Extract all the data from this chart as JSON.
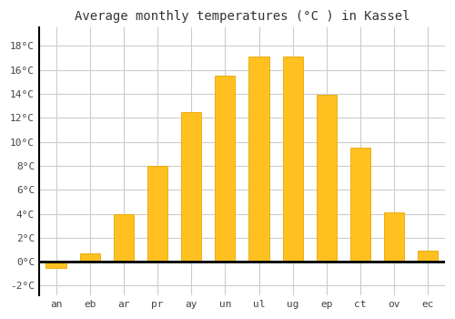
{
  "months": [
    "an",
    "eb",
    "ar",
    "pr",
    "ay",
    "un",
    "ul",
    "ug",
    "ep",
    "ct",
    "ov",
    "ec"
  ],
  "values": [
    -0.5,
    0.7,
    4.0,
    8.0,
    12.5,
    15.5,
    17.1,
    17.1,
    13.9,
    9.5,
    4.1,
    0.9
  ],
  "bar_color": "#FFC020",
  "bar_edge_color": "#E8A800",
  "title": "Average monthly temperatures (°C ) in Kassel",
  "ylim": [
    -2.8,
    19.5
  ],
  "yticks": [
    -2,
    0,
    2,
    4,
    6,
    8,
    10,
    12,
    14,
    16,
    18
  ],
  "background_color": "#ffffff",
  "grid_color": "#cccccc",
  "title_fontsize": 10,
  "tick_fontsize": 8,
  "bar_width": 0.6
}
